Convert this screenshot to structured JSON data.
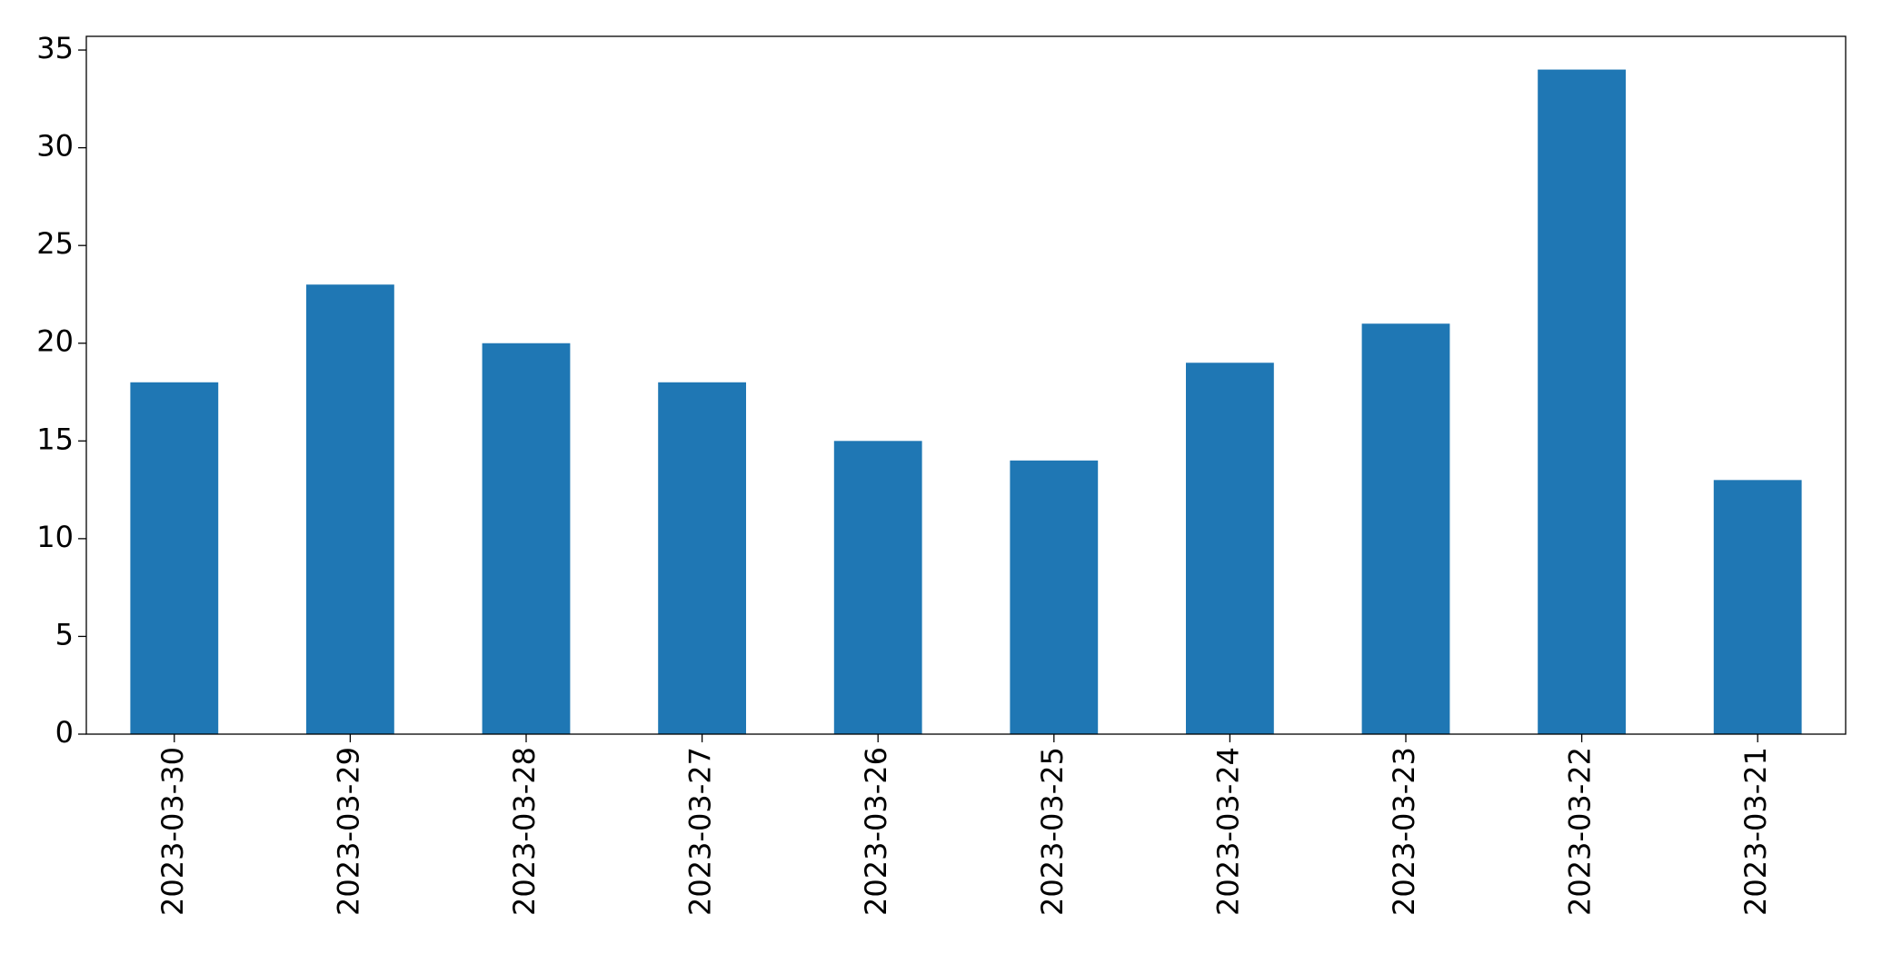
{
  "chart_data": {
    "type": "bar",
    "categories": [
      "2023-03-30",
      "2023-03-29",
      "2023-03-28",
      "2023-03-27",
      "2023-03-26",
      "2023-03-25",
      "2023-03-24",
      "2023-03-23",
      "2023-03-22",
      "2023-03-21"
    ],
    "values": [
      18,
      23,
      20,
      18,
      15,
      14,
      19,
      21,
      34,
      13
    ],
    "color": "#1f77b4",
    "ylim": [
      0,
      35.7
    ],
    "yticks": [
      0,
      5,
      10,
      15,
      20,
      25,
      30,
      35
    ],
    "grid": false
  }
}
